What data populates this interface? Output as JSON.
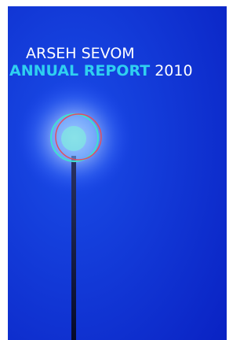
{
  "cover": {
    "publisher": "ARSEH SEVOM",
    "title": "ANNUAL REPORT",
    "year": "2010"
  }
}
